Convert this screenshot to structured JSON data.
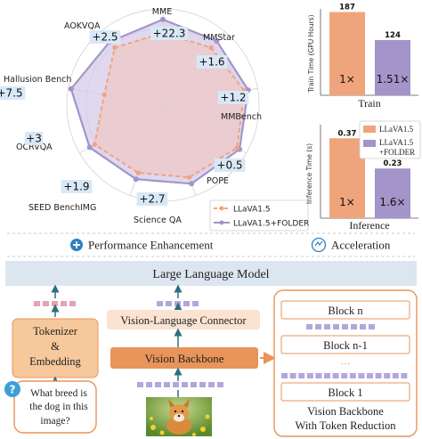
{
  "radar": {
    "axes": [
      {
        "label": "MME",
        "gain": "+22.3",
        "llava": 0.75,
        "folder": 0.89
      },
      {
        "label": "MMStar",
        "gain": "+1.6",
        "llava": 0.78,
        "folder": 0.87
      },
      {
        "label": "MMBench",
        "gain": "+1.2",
        "llava": 0.86,
        "folder": 0.9
      },
      {
        "label": "POPE",
        "gain": "+0.5",
        "llava": 0.89,
        "folder": 0.92
      },
      {
        "label": "Science QA",
        "gain": "+2.7",
        "llava": 0.8,
        "folder": 0.87
      },
      {
        "label": "SEED BenchIMG",
        "gain": "+1.9",
        "llava": 0.75,
        "folder": 0.82
      },
      {
        "label": "OCRVQA",
        "gain": "+3",
        "llava": 0.82,
        "folder": 0.88
      },
      {
        "label": "Hallusion Bench",
        "gain": "+7.5",
        "llava": 0.62,
        "folder": 0.97
      },
      {
        "label": "AOKVQA",
        "gain": "+2.5",
        "llava": 0.78,
        "folder": 0.86
      }
    ],
    "legend": [
      "LLaVA1.5",
      "LLaVA1.5+FOLDER"
    ]
  },
  "chart_data": [
    {
      "type": "bar",
      "ylabel": "Train Time (GPU Hours)",
      "xlabel": "Train",
      "categories": [
        "LLaVA1.5",
        "LLaVA1.5+FOLDER"
      ],
      "values": [
        187,
        124
      ],
      "bar_labels": [
        "1×",
        "1.51×"
      ],
      "ylim": [
        0,
        190
      ]
    },
    {
      "type": "bar",
      "ylabel": "Inference Time (s)",
      "xlabel": "Inference",
      "categories": [
        "LLaVA1.5",
        "LLaVA1.5+FOLDER"
      ],
      "values": [
        0.37,
        0.23
      ],
      "bar_labels": [
        "1×",
        "1.6×"
      ],
      "ylim": [
        0,
        0.4
      ],
      "legend": [
        "LLaVA1.5",
        "LLaVA1.5\n+FOLDER"
      ]
    }
  ],
  "banner": {
    "performance": "Performance Enhancement",
    "acceleration": "Acceleration"
  },
  "diagram": {
    "llm": "Large Language Model",
    "tokenizer": [
      "Tokenizer",
      "&",
      "Embedding"
    ],
    "connector": "Vision-Language Connector",
    "backbone": "Vision Backbone",
    "question": [
      "What breed is",
      "the dog in this",
      "image?"
    ],
    "question_mark": "?",
    "blocks": [
      "Block n",
      "Block n-1",
      "Block 1"
    ],
    "dots": "···",
    "reduction_caption": [
      "Vision Backbone",
      "With Token Reduction"
    ]
  },
  "colors": {
    "llava": "#f0a47c",
    "folder": "#a394c9",
    "llava_fill": "#ecc9c9",
    "folder_fill": "#d6cbea",
    "gain_box": "#d8e8f6",
    "llm_band": "#dce6f1",
    "orange_box": "#f6c89b",
    "orange_border": "#e8945a",
    "token_pink": "#e6a3b1",
    "token_purple": "#b2a7dc",
    "arrow_teal": "#2b6f82"
  }
}
